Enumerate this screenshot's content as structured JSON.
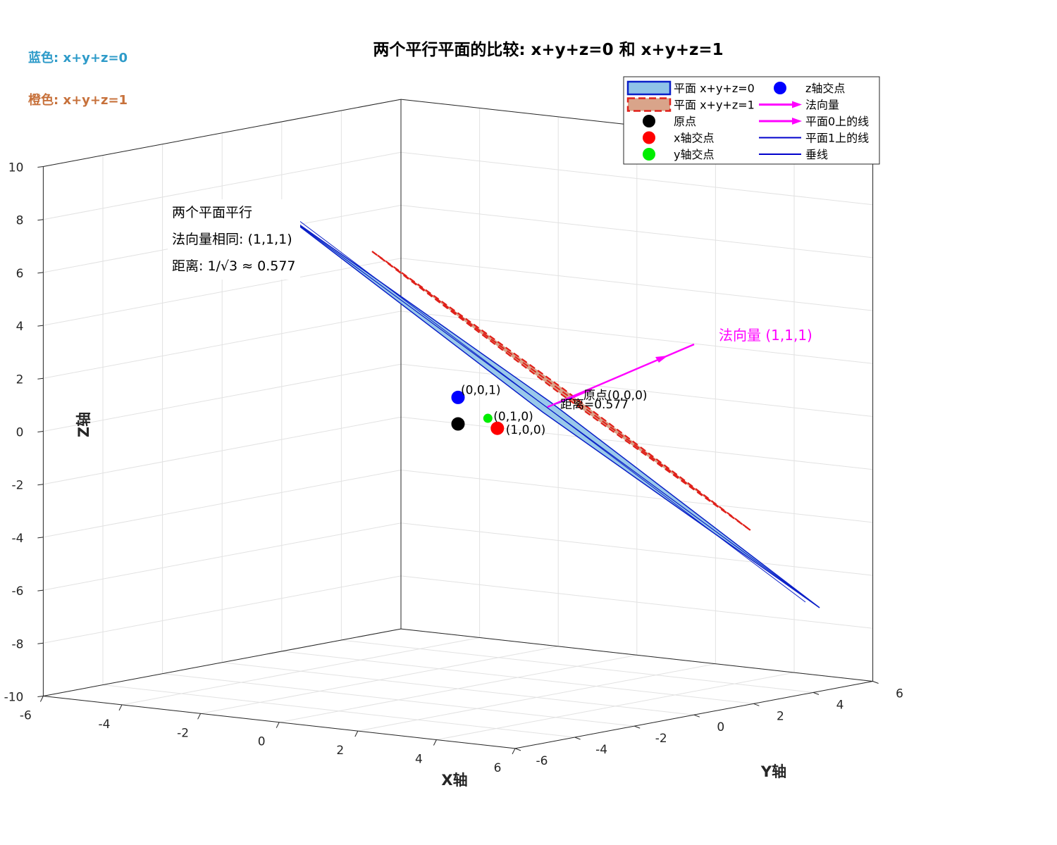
{
  "chart_data": {
    "type": "scatter",
    "projection": "3d",
    "title": "两个平行平面的比较: x+y+z=0 和 x+y+z=1",
    "xlabel": "X轴",
    "ylabel": "Y轴",
    "zlabel": "Z轴",
    "xlim": [
      -6,
      6
    ],
    "ylim": [
      -6,
      6
    ],
    "zlim": [
      -10,
      10
    ],
    "x_ticks": [
      "-6",
      "-4",
      "-2",
      "0",
      "2",
      "4",
      "6"
    ],
    "y_ticks": [
      "-6",
      "-4",
      "-2",
      "0",
      "2",
      "4",
      "6"
    ],
    "z_ticks": [
      "-10",
      "-8",
      "-6",
      "-4",
      "-2",
      "0",
      "2",
      "4",
      "6",
      "8",
      "10"
    ],
    "grid": true,
    "legend_position": "top-right",
    "series": [
      {
        "name": "平面 x+y+z=0",
        "kind": "surface",
        "plane": "x+y+z=0",
        "color": "#8fc3e8",
        "edge_color": "#0a1fc8"
      },
      {
        "name": "平面 x+y+z=1",
        "kind": "surface",
        "plane": "x+y+z=1",
        "color": "#d9a48a",
        "edge_color": "#e0201a"
      },
      {
        "name": "原点",
        "kind": "point",
        "x": 0,
        "y": 0,
        "z": 0,
        "color": "#000000"
      },
      {
        "name": "x轴交点",
        "kind": "point",
        "x": 1,
        "y": 0,
        "z": 0,
        "color": "#ff0000"
      },
      {
        "name": "y轴交点",
        "kind": "point",
        "x": 0,
        "y": 1,
        "z": 0,
        "color": "#00ee00"
      },
      {
        "name": "z轴交点",
        "kind": "point",
        "x": 0,
        "y": 0,
        "z": 1,
        "color": "#0000ff"
      },
      {
        "name": "法向量",
        "kind": "arrow",
        "from": [
          0,
          0,
          0
        ],
        "to": [
          3,
          3,
          3
        ],
        "color": "#ff00ff"
      },
      {
        "name": "平面0上的线",
        "kind": "arrow",
        "color": "#ff00ff"
      },
      {
        "name": "平面1上的线",
        "kind": "line",
        "color": "#0000cc"
      },
      {
        "name": "垂线",
        "kind": "line",
        "color": "#0000cc"
      }
    ],
    "point_labels": [
      "(0,0,1)",
      "原点(0,0,0)",
      "(0,1,0)",
      "(1,0,0)",
      "距离=0.577"
    ],
    "annotations": {
      "normal_label": "法向量 (1,1,1)",
      "note_lines": [
        "两个平面平行",
        "法向量相同: (1,1,1)",
        "距离: 1/√3 ≈ 0.577"
      ]
    }
  },
  "corner_notes": {
    "blue": "蓝色: x+y+z=0",
    "orange": "橙色: x+y+z=1"
  },
  "colors": {
    "blue_note": "#2e9bc9",
    "orange_note": "#c7713b",
    "normal": "#ff00ff",
    "grid": "#e2e2e2"
  }
}
